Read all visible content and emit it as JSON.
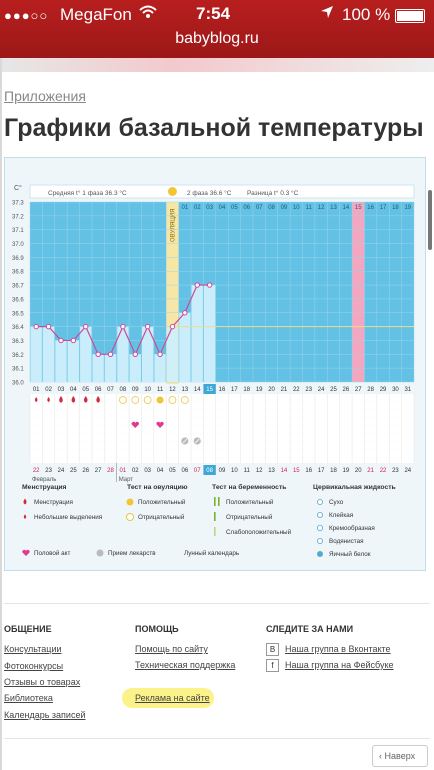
{
  "status_bar": {
    "signal": "●●●○○",
    "carrier": "MegaFon",
    "time": "7:54",
    "battery": "100 %",
    "url": "babyblog.ru"
  },
  "breadcrumb": "Приложения",
  "page_title": "Графики базальной температуры",
  "chart": {
    "unit": "C°",
    "header": {
      "phase1": "Средняя t° 1 фаза 36.3 °C",
      "phase2": "2 фаза 36.6 °C",
      "diff": "Разница t° 0.3 °C"
    },
    "ovulation_label": "ОВУЛЯЦИЯ",
    "y_ticks": [
      "37.3",
      "37.2",
      "37.1",
      "37.0",
      "36.9",
      "36.8",
      "36.7",
      "36.6",
      "36.5",
      "36.4",
      "36.3",
      "36.2",
      "36.1",
      "36.0"
    ],
    "cycle_days": [
      "01",
      "02",
      "03",
      "04",
      "05",
      "06",
      "07",
      "08",
      "09",
      "10",
      "11",
      "12",
      "13",
      "14",
      "15",
      "16",
      "17",
      "18",
      "19",
      "20",
      "21",
      "22",
      "23",
      "24",
      "25",
      "26",
      "27",
      "28",
      "29",
      "30",
      "31"
    ],
    "phase2_days": [
      "01",
      "02",
      "03",
      "04",
      "05",
      "06",
      "07",
      "08",
      "09",
      "10",
      "11",
      "12",
      "13",
      "14",
      "15",
      "16",
      "17",
      "18",
      "19"
    ],
    "dates": [
      "22",
      "23",
      "24",
      "25",
      "26",
      "27",
      "28",
      "01",
      "02",
      "03",
      "04",
      "05",
      "06",
      "07",
      "08",
      "09",
      "10",
      "11",
      "12",
      "13",
      "14",
      "15",
      "16",
      "17",
      "18",
      "19",
      "20",
      "21",
      "22",
      "23",
      "24"
    ],
    "red_date_indices": [
      0,
      6,
      7,
      13,
      14,
      20,
      21,
      27,
      28
    ],
    "highlight_date_index": 14,
    "month_feb": "Февраль",
    "month_mar": "Март",
    "highlight_day": "15",
    "cover_line": 36.4
  },
  "chart_data": {
    "type": "line",
    "x": [
      "01",
      "02",
      "03",
      "04",
      "05",
      "06",
      "07",
      "08",
      "09",
      "10",
      "11",
      "12",
      "13",
      "14",
      "15"
    ],
    "y": [
      36.4,
      36.4,
      36.3,
      36.3,
      36.4,
      36.2,
      36.2,
      36.4,
      36.2,
      36.4,
      36.2,
      36.4,
      36.5,
      36.7,
      36.7
    ],
    "ylabel": "C°",
    "ylim": [
      36.0,
      37.3
    ]
  },
  "legend": {
    "menstruation": {
      "title": "Менструация",
      "items": [
        "Менструация",
        "Небольшие выделения"
      ]
    },
    "ovulation_test": {
      "title": "Тест на овуляцию",
      "items": [
        "Положительный",
        "Отрицательный"
      ]
    },
    "pregnancy_test": {
      "title": "Тест на беременность",
      "items": [
        "Положительный",
        "Отрицательный",
        "Слабоположительный"
      ]
    },
    "cervical": {
      "title": "Цервикальная жидкость",
      "items": [
        "Сухо",
        "Клейкая",
        "Кремообразная",
        "Водянистая",
        "Яичный белок"
      ]
    },
    "bottom": [
      "Половой акт",
      "Прием лекарств",
      "Лунный календарь"
    ]
  },
  "footer": {
    "col1": {
      "title": "ОБЩЕНИЕ",
      "links": [
        "Консультации",
        "Фотоконкурсы",
        "Отзывы о товарах",
        "Библиотека",
        "Календарь записей"
      ]
    },
    "col2": {
      "title": "ПОМОЩЬ",
      "links": [
        "Помощь по сайту",
        "Техническая поддержка",
        "Реклама на сайте"
      ]
    },
    "col3": {
      "title": "СЛЕДИТЕ ЗА НАМИ",
      "links": [
        "Наша группа в Вконтакте",
        "Наша группа на Фейсбуке"
      ],
      "icons": [
        "B",
        "f"
      ]
    },
    "back_button": "Наверх",
    "back_arrow": "‹"
  },
  "colors": {
    "brand": "#b81e1e",
    "chart_bg": "#62c1e4",
    "bar": "#cfeffb",
    "line": "#cc4b9a",
    "ovulation": "#f7e7a6",
    "day15": "#f3a6c0"
  }
}
